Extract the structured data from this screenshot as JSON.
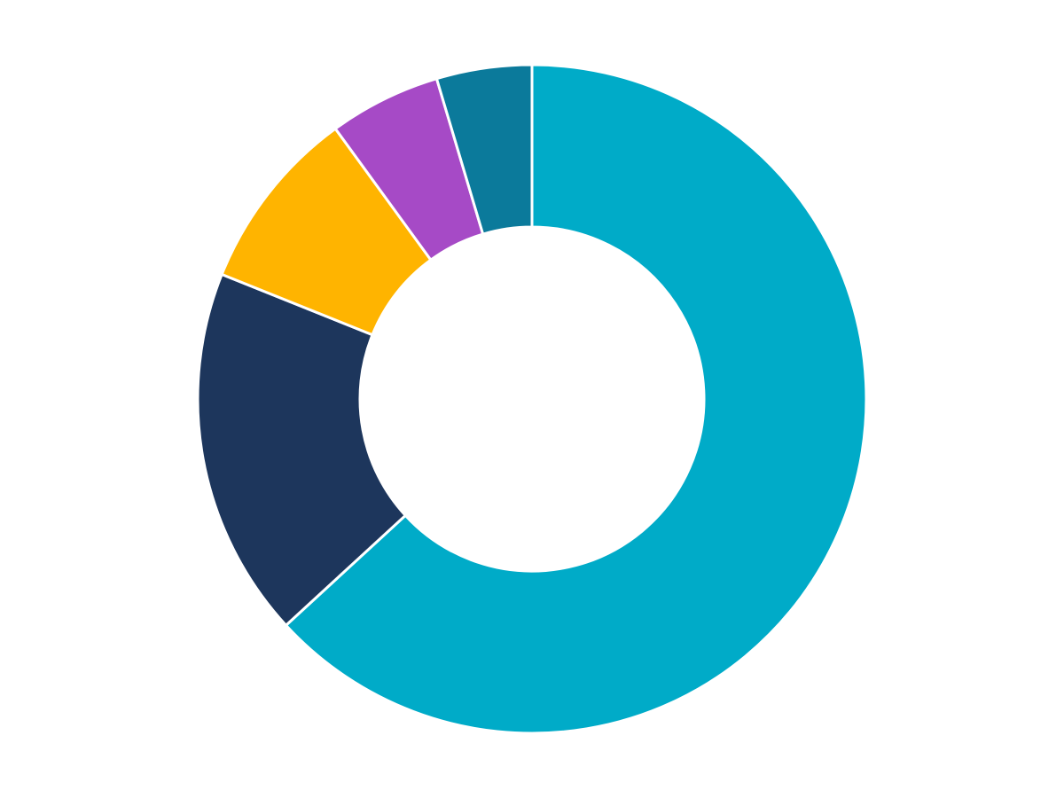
{
  "chart_data": {
    "type": "pie",
    "values": [
      63.1,
      17.9,
      8.9,
      5.4,
      4.6
    ],
    "colors": [
      "#00abc8",
      "#1d365c",
      "#ffb400",
      "#a64ac6",
      "#0b7a9b"
    ]
  }
}
